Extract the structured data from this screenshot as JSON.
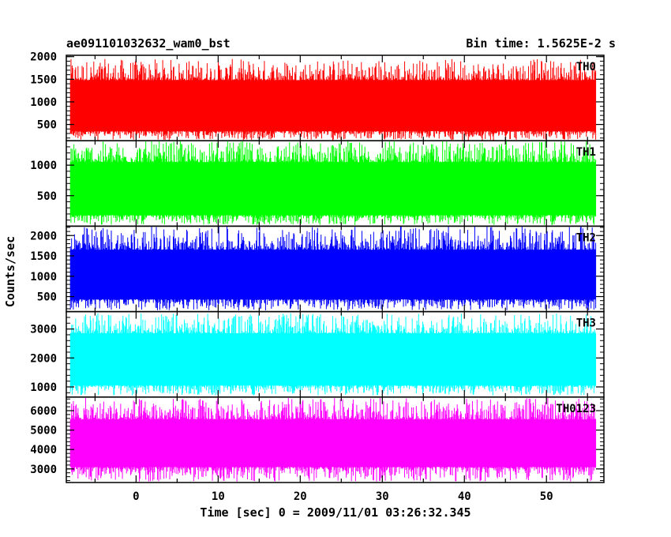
{
  "chart_data": {
    "type": "line",
    "title": "ae091101032632_wam0_bst",
    "subtitle": "Bin time: 1.5625E-2 s",
    "xlabel": "Time [sec] 0 = 2009/11/01 03:26:32.345",
    "ylabel": "Counts/sec",
    "xlim": [
      -8.5,
      57
    ],
    "x_ticks": [
      0,
      10,
      20,
      30,
      40,
      50
    ],
    "x_start": -8,
    "x_end": 56,
    "panels": [
      {
        "name": "TH0",
        "color": "#ff0000",
        "ylim": [
          140,
          2030
        ],
        "y_ticks": [
          500,
          1000,
          1500,
          2000
        ],
        "band_low": 350,
        "band_high": 1480,
        "min": 150,
        "max": 1950
      },
      {
        "name": "TH1",
        "color": "#00ff00",
        "ylim": [
          0,
          1400
        ],
        "y_ticks": [
          500,
          1000
        ],
        "band_low": 180,
        "band_high": 1050,
        "min": 20,
        "max": 1400
      },
      {
        "name": "TH2",
        "color": "#0000ff",
        "ylim": [
          130,
          2230
        ],
        "y_ticks": [
          500,
          1000,
          1500,
          2000
        ],
        "band_low": 430,
        "band_high": 1650,
        "min": 160,
        "max": 2230
      },
      {
        "name": "TH3",
        "color": "#00ffff",
        "ylim": [
          650,
          3600
        ],
        "y_ticks": [
          1000,
          2000,
          3000
        ],
        "band_low": 1050,
        "band_high": 2850,
        "min": 700,
        "max": 3550
      },
      {
        "name": "TH0123",
        "color": "#ff00ff",
        "ylim": [
          2300,
          6700
        ],
        "y_ticks": [
          3000,
          4000,
          5000,
          6000
        ],
        "band_low": 3100,
        "band_high": 5550,
        "min": 2350,
        "max": 6650
      }
    ]
  }
}
